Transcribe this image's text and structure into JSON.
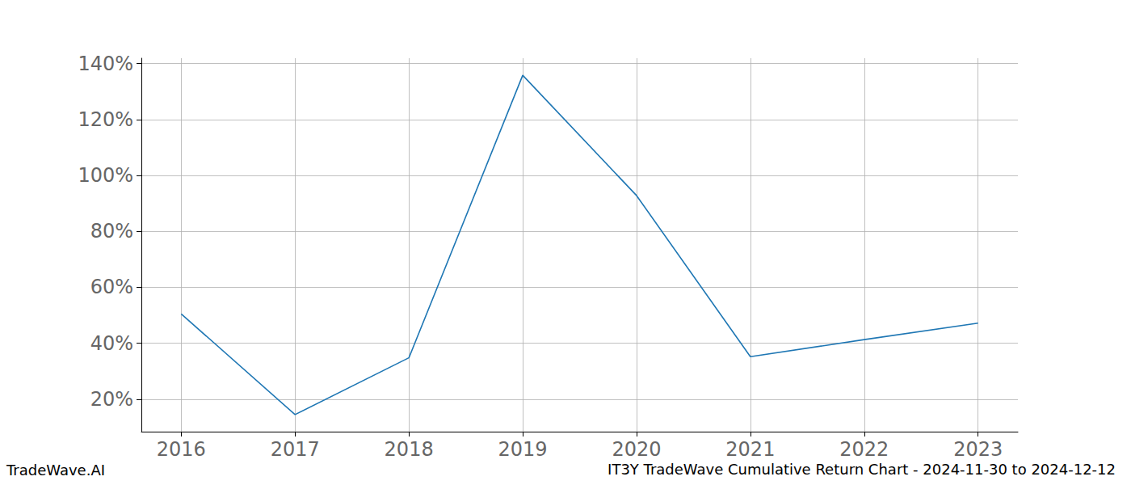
{
  "chart_data": {
    "type": "line",
    "title": "IT3Y TradeWave Cumulative Return Chart - 2024-11-30 to 2024-12-12",
    "annotations": [
      "TradeWave.AI"
    ],
    "x": [
      2016,
      2017,
      2018,
      2019,
      2020,
      2021,
      2022,
      2023
    ],
    "values": [
      50.5,
      14.5,
      34.8,
      135.8,
      92.8,
      35.2,
      41.3,
      47.2
    ],
    "color": "#1f77b4",
    "xlim": [
      2015.65,
      2023.35
    ],
    "xticks": [
      2016,
      2017,
      2018,
      2019,
      2020,
      2021,
      2022,
      2023
    ],
    "ylim": [
      8.4,
      141.9
    ],
    "yticks": [
      {
        "value": 20,
        "label": "20%"
      },
      {
        "value": 40,
        "label": "40%"
      },
      {
        "value": 60,
        "label": "60%"
      },
      {
        "value": 80,
        "label": "80%"
      },
      {
        "value": 100,
        "label": "100%"
      },
      {
        "value": 120,
        "label": "120%"
      },
      {
        "value": 140,
        "label": "140%"
      }
    ],
    "grid": true
  }
}
